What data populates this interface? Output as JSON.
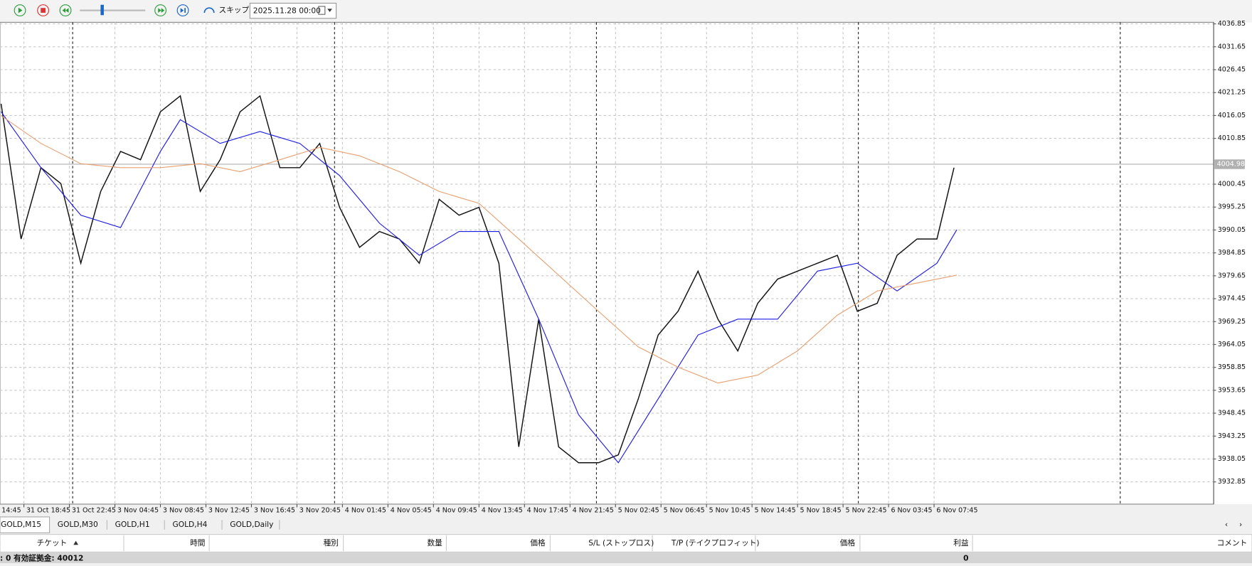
{
  "toolbar": {
    "skip": "スキップ",
    "date": "2025.11.28 00:00"
  },
  "chart_data": {
    "type": "line",
    "xlim": [
      7.6,
      434.3
    ],
    "ylim": [
      3927.8,
      4037.2
    ],
    "grid": true,
    "current_price": 4004.98,
    "xticks": [
      {
        "value": 0,
        "label": "14:45"
      },
      {
        "value": 16,
        "label": "31 Oct 18:45"
      },
      {
        "value": 32,
        "label": "31 Oct 22:45"
      },
      {
        "value": 48,
        "label": "3 Nov 04:45"
      },
      {
        "value": 64,
        "label": "3 Nov 08:45"
      },
      {
        "value": 80,
        "label": "3 Nov 12:45"
      },
      {
        "value": 96,
        "label": "3 Nov 16:45"
      },
      {
        "value": 112,
        "label": "3 Nov 20:45"
      },
      {
        "value": 128,
        "label": "4 Nov 01:45"
      },
      {
        "value": 144,
        "label": "4 Nov 05:45"
      },
      {
        "value": 160,
        "label": "4 Nov 09:45"
      },
      {
        "value": 176,
        "label": "4 Nov 13:45"
      },
      {
        "value": 192,
        "label": "4 Nov 17:45"
      },
      {
        "value": 208,
        "label": "4 Nov 21:45"
      },
      {
        "value": 224,
        "label": "5 Nov 02:45"
      },
      {
        "value": 240,
        "label": "5 Nov 06:45"
      },
      {
        "value": 256,
        "label": "5 Nov 10:45"
      },
      {
        "value": 272,
        "label": "5 Nov 14:45"
      },
      {
        "value": 288,
        "label": "5 Nov 18:45"
      },
      {
        "value": 304,
        "label": "5 Nov 22:45"
      },
      {
        "value": 320,
        "label": "6 Nov 03:45"
      },
      {
        "value": 336,
        "label": "6 Nov 07:45"
      }
    ],
    "yticks": [
      4036.85,
      4031.65,
      4026.45,
      4021.25,
      4016.05,
      4010.85,
      4000.45,
      3995.25,
      3990.05,
      3984.85,
      3979.65,
      3974.45,
      3969.25,
      3964.05,
      3958.85,
      3953.65,
      3948.45,
      3943.25,
      3938.05,
      3932.85
    ],
    "series": [
      {
        "color": "#111111",
        "x": [
          8,
          15,
          22,
          29,
          36,
          43,
          50,
          57,
          64,
          71,
          78,
          85,
          92,
          99,
          106,
          113,
          120,
          127,
          134,
          141,
          148,
          155,
          162,
          169,
          176,
          183,
          190,
          197,
          204,
          211,
          218,
          225,
          232,
          239,
          246,
          253,
          260,
          267,
          274,
          281,
          288,
          295,
          302,
          309,
          316,
          323,
          330,
          337,
          343
        ],
        "values": [
          4018.7,
          3988,
          4004.2,
          4000.6,
          3982.5,
          3998.8,
          4007.9,
          4006,
          4016.9,
          4020.5,
          3998.8,
          4006,
          4016.9,
          4020.5,
          4004.2,
          4004.2,
          4009.7,
          3995.2,
          3986.1,
          3989.7,
          3988,
          3982.5,
          3997,
          3993.4,
          3995.2,
          3982.5,
          3940.8,
          3969.8,
          3940.8,
          3937.2,
          3937.2,
          3939,
          3951.7,
          3966.2,
          3971.6,
          3980.7,
          3969.8,
          3962.6,
          3973.4,
          3978.9,
          3980.7,
          3982.5,
          3984.3,
          3971.6,
          3973.4,
          3984.3,
          3988,
          3988,
          4004.2
        ]
      },
      {
        "color": "#1a1ae6",
        "x": [
          8,
          22,
          36,
          50,
          64,
          71,
          85,
          99,
          113,
          127,
          141,
          155,
          169,
          183,
          197,
          211,
          225,
          239,
          253,
          267,
          281,
          295,
          309,
          323,
          337,
          344
        ],
        "values": [
          4016.9,
          4004.2,
          3993.4,
          3990.6,
          4007.9,
          4015.1,
          4009.7,
          4012.4,
          4009.7,
          4002.4,
          3991.6,
          3984.3,
          3989.7,
          3989.7,
          3969.8,
          3948.1,
          3937.2,
          3951.7,
          3966.2,
          3969.8,
          3969.8,
          3980.7,
          3982.5,
          3976.2,
          3982.5,
          3990.1
        ]
      },
      {
        "color": "#e8a070",
        "x": [
          8,
          22,
          36,
          50,
          64,
          78,
          92,
          106,
          120,
          134,
          148,
          162,
          176,
          190,
          204,
          218,
          232,
          246,
          260,
          274,
          288,
          302,
          316,
          330,
          344
        ],
        "values": [
          4016,
          4009.7,
          4005.1,
          4004.2,
          4004.2,
          4005.1,
          4003.3,
          4006,
          4008.8,
          4006.9,
          4003.3,
          3998.8,
          3996.1,
          3988,
          3979.8,
          3971.6,
          3963.5,
          3958.9,
          3955.3,
          3957.1,
          3962.6,
          3970.7,
          3976.2,
          3978,
          3979.8
        ]
      }
    ]
  },
  "tabs": [
    "GOLD,M15",
    "GOLD,M30",
    "GOLD,H1",
    "GOLD,H4",
    "GOLD,Daily"
  ],
  "table": {
    "headers": [
      "チケット",
      "時間",
      "種別",
      "数量",
      "価格",
      "S/L (ストップロス)",
      "T/P (テイクプロフィット)",
      "価格",
      "利益",
      "コメント"
    ],
    "rows": [
      [
        ": 0  有効証拠金: 40012",
        "0"
      ]
    ]
  }
}
